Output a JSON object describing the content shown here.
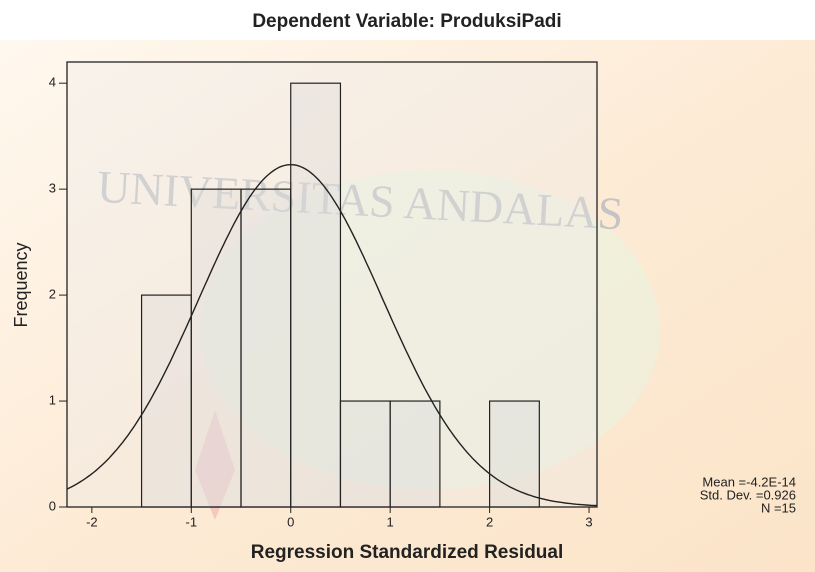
{
  "chart_data": {
    "type": "histogram",
    "title": "Dependent Variable: ProduksiPadi",
    "xlabel": "Regression Standardized Residual",
    "ylabel": "Frequency",
    "watermark": "UNIVERSITAS ANDALAS",
    "bins": [
      -1.5,
      -1,
      -0.5,
      0,
      0.5,
      1,
      1.5,
      2,
      2.5
    ],
    "values": [
      2,
      3,
      3,
      4,
      1,
      1,
      0,
      1
    ],
    "color": "#d9d9d9",
    "xlim": [
      -2.25,
      3.08
    ],
    "xticks": [
      -2,
      -1,
      0,
      1,
      2,
      3
    ],
    "ylim": [
      0,
      4.2
    ],
    "yticks": [
      0,
      1,
      2,
      3,
      4
    ],
    "stats": {
      "mean": -4.2e-14,
      "std_dev": 0.926,
      "n": 15,
      "labels": [
        "Mean =-4.2E-14",
        "Std. Dev. =0.926",
        "N =15"
      ]
    }
  }
}
